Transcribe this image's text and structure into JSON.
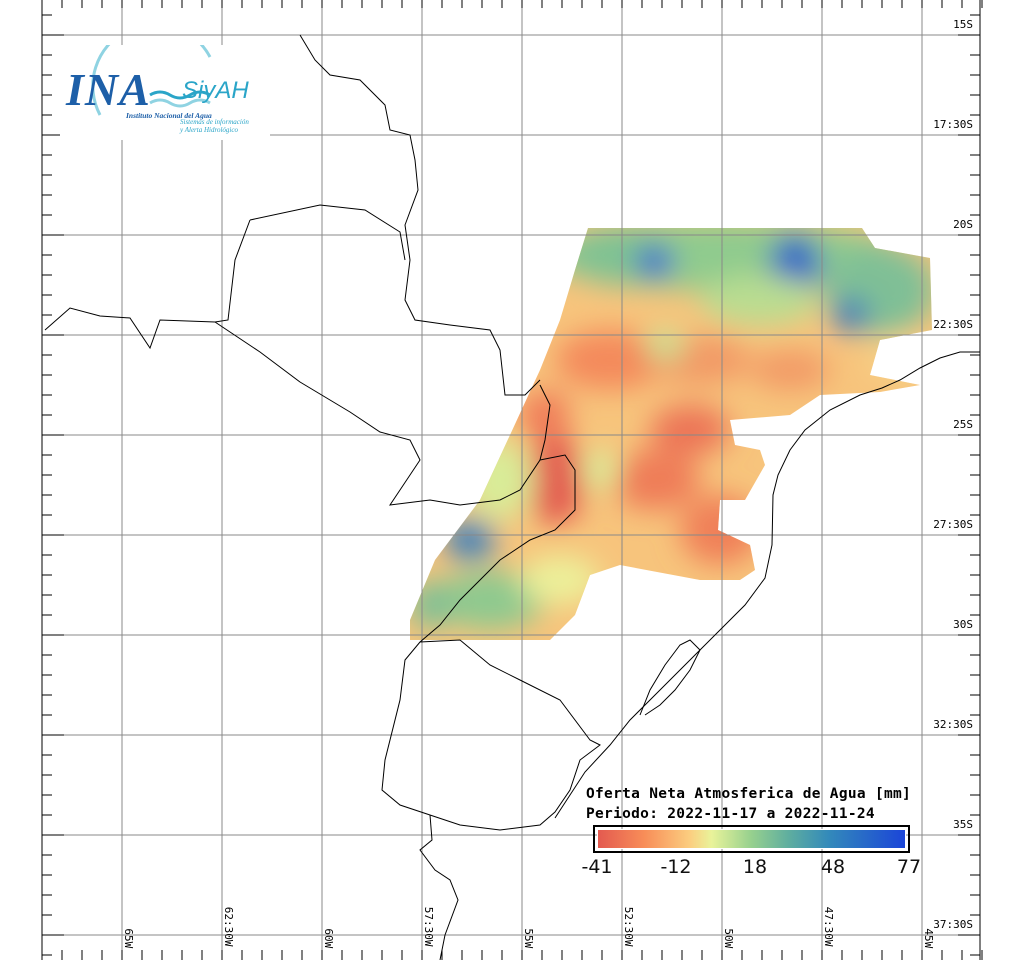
{
  "logo": {
    "acronym": "INA",
    "system": "SiyAH",
    "institute": "Instituto Nacional del Agua",
    "subtitle_line1": "Sistemas de información",
    "subtitle_line2": "y Alerta Hidrológico"
  },
  "legend": {
    "title": "Oferta Neta Atmosferica de Agua [mm]",
    "period": "Periodo: 2022-11-17 a 2022-11-24",
    "ticks": [
      "-41",
      "-12",
      "18",
      "48",
      "77"
    ],
    "range": [
      -41,
      77
    ],
    "colors": [
      "#e35a50",
      "#f88d58",
      "#fbce80",
      "#e9f39a",
      "#96d08e",
      "#5fae9f",
      "#338aba",
      "#1b45d8"
    ]
  },
  "axes": {
    "lon_labels": [
      "65W",
      "62:30W",
      "60W",
      "57:30W",
      "55W",
      "52:30W",
      "50W",
      "47:30W",
      "45W"
    ],
    "lat_labels": [
      "15S",
      "17:30S",
      "20S",
      "22:30S",
      "25S",
      "27:30S",
      "30S",
      "32:30S",
      "35S",
      "37:30S"
    ]
  }
}
